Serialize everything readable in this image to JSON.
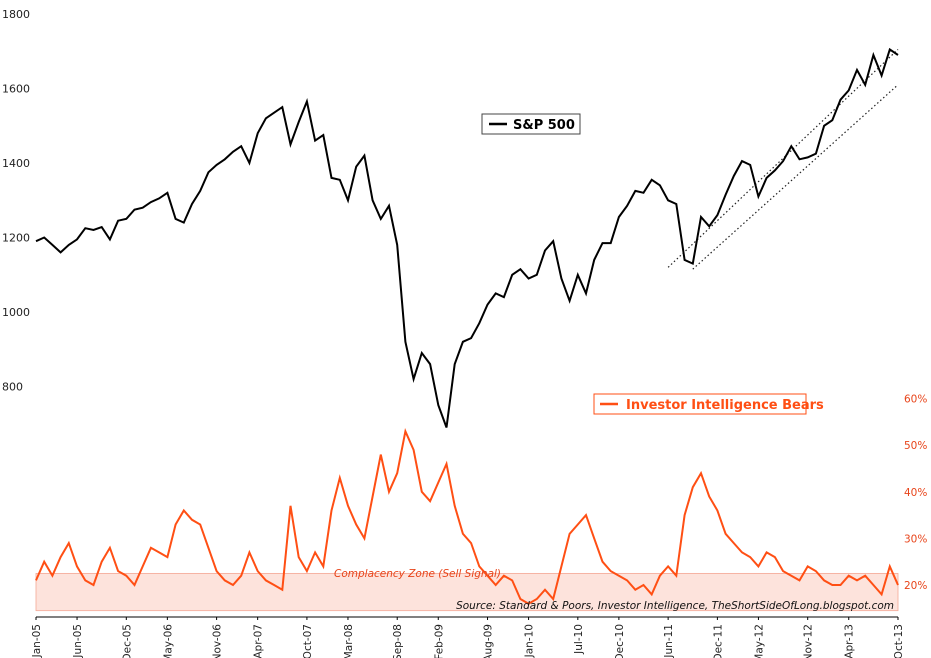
{
  "colors": {
    "sp500": "#000000",
    "bears": "#ff4f14",
    "zone_fill": "#fde3dc",
    "zone_stroke": "#f4a896",
    "right_axis": "#e8441a"
  },
  "chart_data": {
    "type": "line",
    "title": "",
    "left_axis": {
      "ylim": [
        600,
        1800
      ],
      "ticks": [
        "800",
        "1000",
        "1200",
        "1400",
        "1600",
        "1800"
      ]
    },
    "right_axis": {
      "ylim": [
        14,
        64
      ],
      "ticks": [
        "20%",
        "30%",
        "40%",
        "50%",
        "60%"
      ]
    },
    "x_axis": {
      "range": [
        "2005-01",
        "2013-10"
      ],
      "ticks": [
        "Jan-05",
        "Jun-05",
        "Dec-05",
        "May-06",
        "Nov-06",
        "Apr-07",
        "Oct-07",
        "Mar-08",
        "Sep-08",
        "Feb-09",
        "Aug-09",
        "Jan-10",
        "Jul-10",
        "Dec-10",
        "Jun-11",
        "Dec-11",
        "May-12",
        "Nov-12",
        "Apr-13",
        "Oct-13"
      ]
    },
    "series": [
      {
        "name": "S&P 500",
        "axis": "left",
        "points": [
          [
            "2005-01",
            1190
          ],
          [
            "2005-02",
            1200
          ],
          [
            "2005-03",
            1180
          ],
          [
            "2005-04",
            1160
          ],
          [
            "2005-05",
            1180
          ],
          [
            "2005-06",
            1195
          ],
          [
            "2005-07",
            1225
          ],
          [
            "2005-08",
            1220
          ],
          [
            "2005-09",
            1228
          ],
          [
            "2005-10",
            1195
          ],
          [
            "2005-11",
            1245
          ],
          [
            "2005-12",
            1250
          ],
          [
            "2006-01",
            1275
          ],
          [
            "2006-02",
            1280
          ],
          [
            "2006-03",
            1295
          ],
          [
            "2006-04",
            1305
          ],
          [
            "2006-05",
            1320
          ],
          [
            "2006-06",
            1250
          ],
          [
            "2006-07",
            1240
          ],
          [
            "2006-08",
            1290
          ],
          [
            "2006-09",
            1325
          ],
          [
            "2006-10",
            1375
          ],
          [
            "2006-11",
            1395
          ],
          [
            "2006-12",
            1410
          ],
          [
            "2007-01",
            1430
          ],
          [
            "2007-02",
            1445
          ],
          [
            "2007-03",
            1400
          ],
          [
            "2007-04",
            1480
          ],
          [
            "2007-05",
            1520
          ],
          [
            "2007-06",
            1535
          ],
          [
            "2007-07",
            1550
          ],
          [
            "2007-08",
            1450
          ],
          [
            "2007-09",
            1510
          ],
          [
            "2007-10",
            1565
          ],
          [
            "2007-11",
            1460
          ],
          [
            "2007-12",
            1475
          ],
          [
            "2008-01",
            1360
          ],
          [
            "2008-02",
            1355
          ],
          [
            "2008-03",
            1300
          ],
          [
            "2008-04",
            1390
          ],
          [
            "2008-05",
            1420
          ],
          [
            "2008-06",
            1300
          ],
          [
            "2008-07",
            1250
          ],
          [
            "2008-08",
            1285
          ],
          [
            "2008-09",
            1180
          ],
          [
            "2008-10",
            920
          ],
          [
            "2008-11",
            820
          ],
          [
            "2008-12",
            890
          ],
          [
            "2009-01",
            860
          ],
          [
            "2009-02",
            750
          ],
          [
            "2009-03",
            690
          ],
          [
            "2009-04",
            860
          ],
          [
            "2009-05",
            920
          ],
          [
            "2009-06",
            930
          ],
          [
            "2009-07",
            970
          ],
          [
            "2009-08",
            1020
          ],
          [
            "2009-09",
            1050
          ],
          [
            "2009-10",
            1040
          ],
          [
            "2009-11",
            1100
          ],
          [
            "2009-12",
            1115
          ],
          [
            "2010-01",
            1090
          ],
          [
            "2010-02",
            1100
          ],
          [
            "2010-03",
            1165
          ],
          [
            "2010-04",
            1190
          ],
          [
            "2010-05",
            1090
          ],
          [
            "2010-06",
            1030
          ],
          [
            "2010-07",
            1100
          ],
          [
            "2010-08",
            1050
          ],
          [
            "2010-09",
            1140
          ],
          [
            "2010-10",
            1185
          ],
          [
            "2010-11",
            1185
          ],
          [
            "2010-12",
            1255
          ],
          [
            "2011-01",
            1285
          ],
          [
            "2011-02",
            1325
          ],
          [
            "2011-03",
            1320
          ],
          [
            "2011-04",
            1355
          ],
          [
            "2011-05",
            1340
          ],
          [
            "2011-06",
            1300
          ],
          [
            "2011-07",
            1290
          ],
          [
            "2011-08",
            1140
          ],
          [
            "2011-09",
            1130
          ],
          [
            "2011-10",
            1255
          ],
          [
            "2011-11",
            1230
          ],
          [
            "2011-12",
            1260
          ],
          [
            "2012-01",
            1315
          ],
          [
            "2012-02",
            1365
          ],
          [
            "2012-03",
            1405
          ],
          [
            "2012-04",
            1395
          ],
          [
            "2012-05",
            1310
          ],
          [
            "2012-06",
            1360
          ],
          [
            "2012-07",
            1380
          ],
          [
            "2012-08",
            1405
          ],
          [
            "2012-09",
            1445
          ],
          [
            "2012-10",
            1410
          ],
          [
            "2012-11",
            1415
          ],
          [
            "2012-12",
            1425
          ],
          [
            "2013-01",
            1500
          ],
          [
            "2013-02",
            1515
          ],
          [
            "2013-03",
            1570
          ],
          [
            "2013-04",
            1595
          ],
          [
            "2013-05",
            1650
          ],
          [
            "2013-06",
            1610
          ],
          [
            "2013-07",
            1690
          ],
          [
            "2013-08",
            1635
          ],
          [
            "2013-09",
            1705
          ],
          [
            "2013-10",
            1690
          ]
        ]
      },
      {
        "name": "Investor Intelligence Bears",
        "axis": "right",
        "points": [
          [
            "2005-01",
            21
          ],
          [
            "2005-02",
            25
          ],
          [
            "2005-03",
            22
          ],
          [
            "2005-04",
            26
          ],
          [
            "2005-05",
            29
          ],
          [
            "2005-06",
            24
          ],
          [
            "2005-07",
            21
          ],
          [
            "2005-08",
            20
          ],
          [
            "2005-09",
            25
          ],
          [
            "2005-10",
            28
          ],
          [
            "2005-11",
            23
          ],
          [
            "2005-12",
            22
          ],
          [
            "2006-01",
            20
          ],
          [
            "2006-02",
            24
          ],
          [
            "2006-03",
            28
          ],
          [
            "2006-04",
            27
          ],
          [
            "2006-05",
            26
          ],
          [
            "2006-06",
            33
          ],
          [
            "2006-07",
            36
          ],
          [
            "2006-08",
            34
          ],
          [
            "2006-09",
            33
          ],
          [
            "2006-10",
            28
          ],
          [
            "2006-11",
            23
          ],
          [
            "2006-12",
            21
          ],
          [
            "2007-01",
            20
          ],
          [
            "2007-02",
            22
          ],
          [
            "2007-03",
            27
          ],
          [
            "2007-04",
            23
          ],
          [
            "2007-05",
            21
          ],
          [
            "2007-06",
            20
          ],
          [
            "2007-07",
            19
          ],
          [
            "2007-08",
            37
          ],
          [
            "2007-09",
            26
          ],
          [
            "2007-10",
            23
          ],
          [
            "2007-11",
            27
          ],
          [
            "2007-12",
            24
          ],
          [
            "2008-01",
            36
          ],
          [
            "2008-02",
            43
          ],
          [
            "2008-03",
            37
          ],
          [
            "2008-04",
            33
          ],
          [
            "2008-05",
            30
          ],
          [
            "2008-06",
            39
          ],
          [
            "2008-07",
            48
          ],
          [
            "2008-08",
            40
          ],
          [
            "2008-09",
            44
          ],
          [
            "2008-10",
            53
          ],
          [
            "2008-11",
            49
          ],
          [
            "2008-12",
            40
          ],
          [
            "2009-01",
            38
          ],
          [
            "2009-02",
            42
          ],
          [
            "2009-03",
            46
          ],
          [
            "2009-04",
            37
          ],
          [
            "2009-05",
            31
          ],
          [
            "2009-06",
            29
          ],
          [
            "2009-07",
            24
          ],
          [
            "2009-08",
            22
          ],
          [
            "2009-09",
            20
          ],
          [
            "2009-10",
            22
          ],
          [
            "2009-11",
            21
          ],
          [
            "2009-12",
            17
          ],
          [
            "2010-01",
            16
          ],
          [
            "2010-02",
            17
          ],
          [
            "2010-03",
            19
          ],
          [
            "2010-04",
            17
          ],
          [
            "2010-05",
            24
          ],
          [
            "2010-06",
            31
          ],
          [
            "2010-07",
            33
          ],
          [
            "2010-08",
            35
          ],
          [
            "2010-09",
            30
          ],
          [
            "2010-10",
            25
          ],
          [
            "2010-11",
            23
          ],
          [
            "2010-12",
            22
          ],
          [
            "2011-01",
            21
          ],
          [
            "2011-02",
            19
          ],
          [
            "2011-03",
            20
          ],
          [
            "2011-04",
            18
          ],
          [
            "2011-05",
            22
          ],
          [
            "2011-06",
            24
          ],
          [
            "2011-07",
            22
          ],
          [
            "2011-08",
            35
          ],
          [
            "2011-09",
            41
          ],
          [
            "2011-10",
            44
          ],
          [
            "2011-11",
            39
          ],
          [
            "2011-12",
            36
          ],
          [
            "2012-01",
            31
          ],
          [
            "2012-02",
            29
          ],
          [
            "2012-03",
            27
          ],
          [
            "2012-04",
            26
          ],
          [
            "2012-05",
            24
          ],
          [
            "2012-06",
            27
          ],
          [
            "2012-07",
            26
          ],
          [
            "2012-08",
            23
          ],
          [
            "2012-09",
            22
          ],
          [
            "2012-10",
            21
          ],
          [
            "2012-11",
            24
          ],
          [
            "2012-12",
            23
          ],
          [
            "2013-01",
            21
          ],
          [
            "2013-02",
            20
          ],
          [
            "2013-03",
            20
          ],
          [
            "2013-04",
            22
          ],
          [
            "2013-05",
            21
          ],
          [
            "2013-06",
            22
          ],
          [
            "2013-07",
            20
          ],
          [
            "2013-08",
            18
          ],
          [
            "2013-09",
            24
          ],
          [
            "2013-10",
            20
          ]
        ]
      }
    ],
    "trendlines": [
      {
        "axis": "left",
        "from": [
          "2011-06",
          1120
        ],
        "to": [
          "2013-10",
          1705
        ]
      },
      {
        "axis": "left",
        "from": [
          "2011-09",
          1115
        ],
        "to": [
          "2013-10",
          1610
        ]
      }
    ],
    "zone": {
      "axis": "right",
      "range": [
        14.5,
        22.5
      ],
      "label": "Complacency Zone (Sell Signal)"
    },
    "legend": [
      {
        "label": "S&P 500",
        "series": 0
      },
      {
        "label": "Investor Intelligence Bears",
        "series": 1
      }
    ],
    "source": "Source: Standard & Poors, Investor Intelligence, TheShortSideOfLong.blogspot.com"
  }
}
